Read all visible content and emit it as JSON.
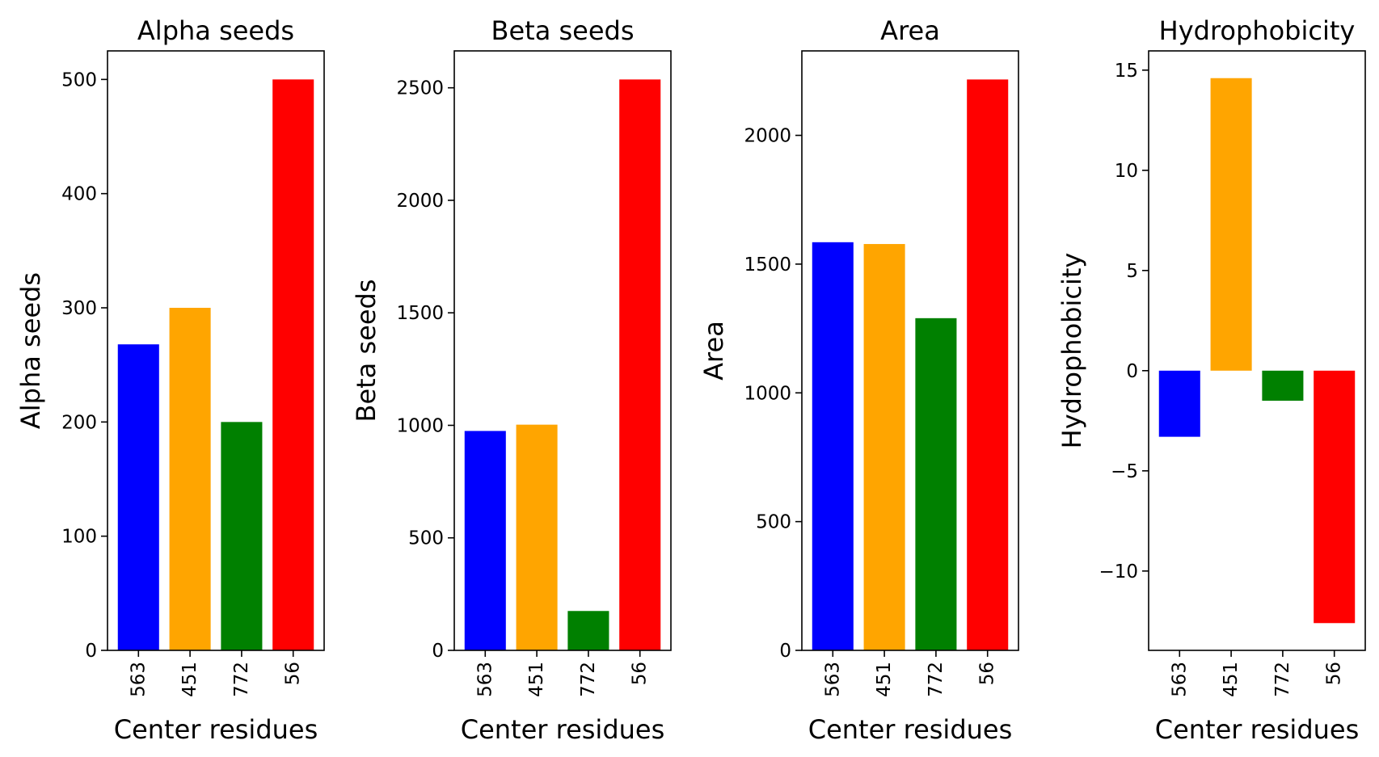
{
  "chart_data": [
    {
      "type": "bar",
      "title": "Alpha seeds",
      "xlabel": "Center residues",
      "ylabel": "Alpha seeds",
      "categories": [
        "563",
        "451",
        "772",
        "56"
      ],
      "values": [
        268,
        300,
        200,
        500
      ],
      "colors": [
        "#0000ff",
        "#ffa500",
        "#008000",
        "#ff0000"
      ],
      "ylim": [
        0,
        525
      ],
      "yticks": [
        0,
        100,
        200,
        300,
        400,
        500
      ],
      "ytick_labels": [
        "0",
        "100",
        "200",
        "300",
        "400",
        "500"
      ],
      "grid": false
    },
    {
      "type": "bar",
      "title": "Beta seeds",
      "xlabel": "Center residues",
      "ylabel": "Beta seeds",
      "categories": [
        "563",
        "451",
        "772",
        "56"
      ],
      "values": [
        975,
        1003,
        175,
        2537
      ],
      "colors": [
        "#0000ff",
        "#ffa500",
        "#008000",
        "#ff0000"
      ],
      "ylim": [
        0,
        2664
      ],
      "yticks": [
        0,
        500,
        1000,
        1500,
        2000,
        2500
      ],
      "ytick_labels": [
        "0",
        "500",
        "1000",
        "1500",
        "2000",
        "2500"
      ],
      "grid": false
    },
    {
      "type": "bar",
      "title": "Area",
      "xlabel": "Center residues",
      "ylabel": "Area",
      "categories": [
        "563",
        "451",
        "772",
        "56"
      ],
      "values": [
        1585,
        1578,
        1290,
        2217
      ],
      "colors": [
        "#0000ff",
        "#ffa500",
        "#008000",
        "#ff0000"
      ],
      "ylim": [
        0,
        2328
      ],
      "yticks": [
        0,
        500,
        1000,
        1500,
        2000
      ],
      "ytick_labels": [
        "0",
        "500",
        "1000",
        "1500",
        "2000"
      ],
      "grid": false
    },
    {
      "type": "bar",
      "title": "Hydrophobicity",
      "xlabel": "Center residues",
      "ylabel": "Hydrophobicity",
      "categories": [
        "563",
        "451",
        "772",
        "56"
      ],
      "values": [
        -3.3,
        14.6,
        -1.5,
        -12.6
      ],
      "colors": [
        "#0000ff",
        "#ffa500",
        "#008000",
        "#ff0000"
      ],
      "ylim": [
        -13.96,
        15.96
      ],
      "yticks": [
        -10,
        -5,
        0,
        5,
        10,
        15
      ],
      "ytick_labels": [
        "−10",
        "−5",
        "0",
        "5",
        "10",
        "15"
      ],
      "grid": false
    }
  ]
}
